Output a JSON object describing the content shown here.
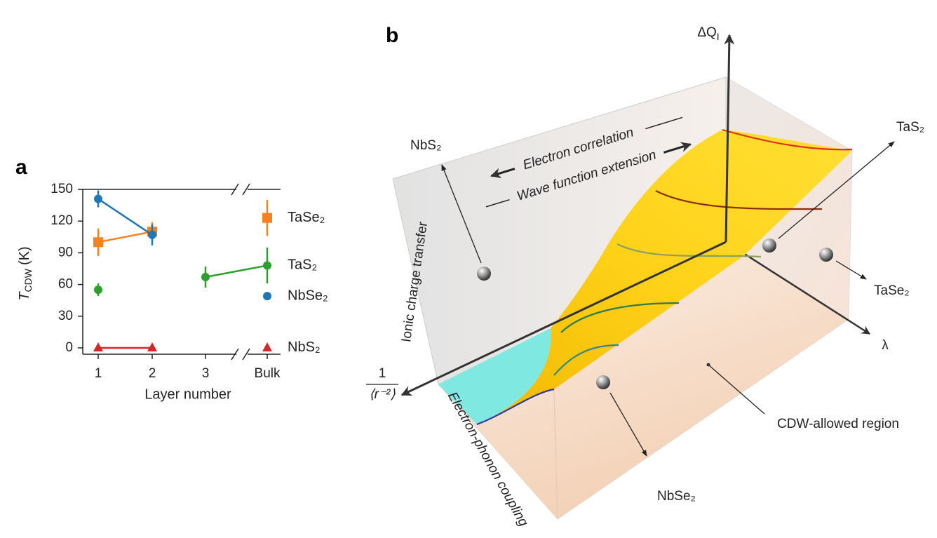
{
  "chart_data": {
    "type": "line",
    "panel_label": "a",
    "categories": [
      "1",
      "2",
      "3",
      "Bulk"
    ],
    "x_label": "Layer number",
    "y_label_symbol": "T",
    "y_label_subscript": "CDW",
    "y_label_unit": "(K)",
    "ylim": [
      -6,
      150
    ],
    "yticks": [
      0,
      30,
      60,
      90,
      120,
      150
    ],
    "series": [
      {
        "name": "TaSe₂",
        "color": "#f58220",
        "marker": "square",
        "values": [
          100,
          110,
          null,
          123
        ],
        "errors": [
          13,
          9,
          null,
          17
        ]
      },
      {
        "name": "TaS₂",
        "color": "#2ca02c",
        "marker": "circle",
        "values": [
          55,
          null,
          67,
          78
        ],
        "errors": [
          6,
          null,
          10,
          17
        ]
      },
      {
        "name": "NbSe₂",
        "color": "#1f77b4",
        "marker": "circle",
        "values": [
          141,
          107,
          null,
          49
        ],
        "errors": [
          8,
          10,
          null,
          null
        ]
      },
      {
        "name": "NbS₂",
        "color": "#d62728",
        "marker": "triangle",
        "values": [
          0,
          0,
          null,
          0
        ]
      }
    ]
  },
  "diagram": {
    "panel_label": "b",
    "delta_q": "ΔQ",
    "delta_q_sub": "I",
    "lambda": "λ",
    "inv_num": "1",
    "inv_den": "⟨r⁻²⟩",
    "electron_correlation": "Electron correlation",
    "wave_function": "Wave function extension",
    "ionic": "Ionic charge transfer",
    "electron_phonon": "Electron-phonon coupling",
    "cdw_region": "CDW-allowed region",
    "materials": [
      {
        "label": "NbS₂",
        "color": "#d62728"
      },
      {
        "label": "TaS₂",
        "color": "#2ca02c"
      },
      {
        "label": "TaSe₂",
        "color": "#f58220"
      },
      {
        "label": "NbSe₂",
        "color": "#1f77b4"
      }
    ]
  }
}
